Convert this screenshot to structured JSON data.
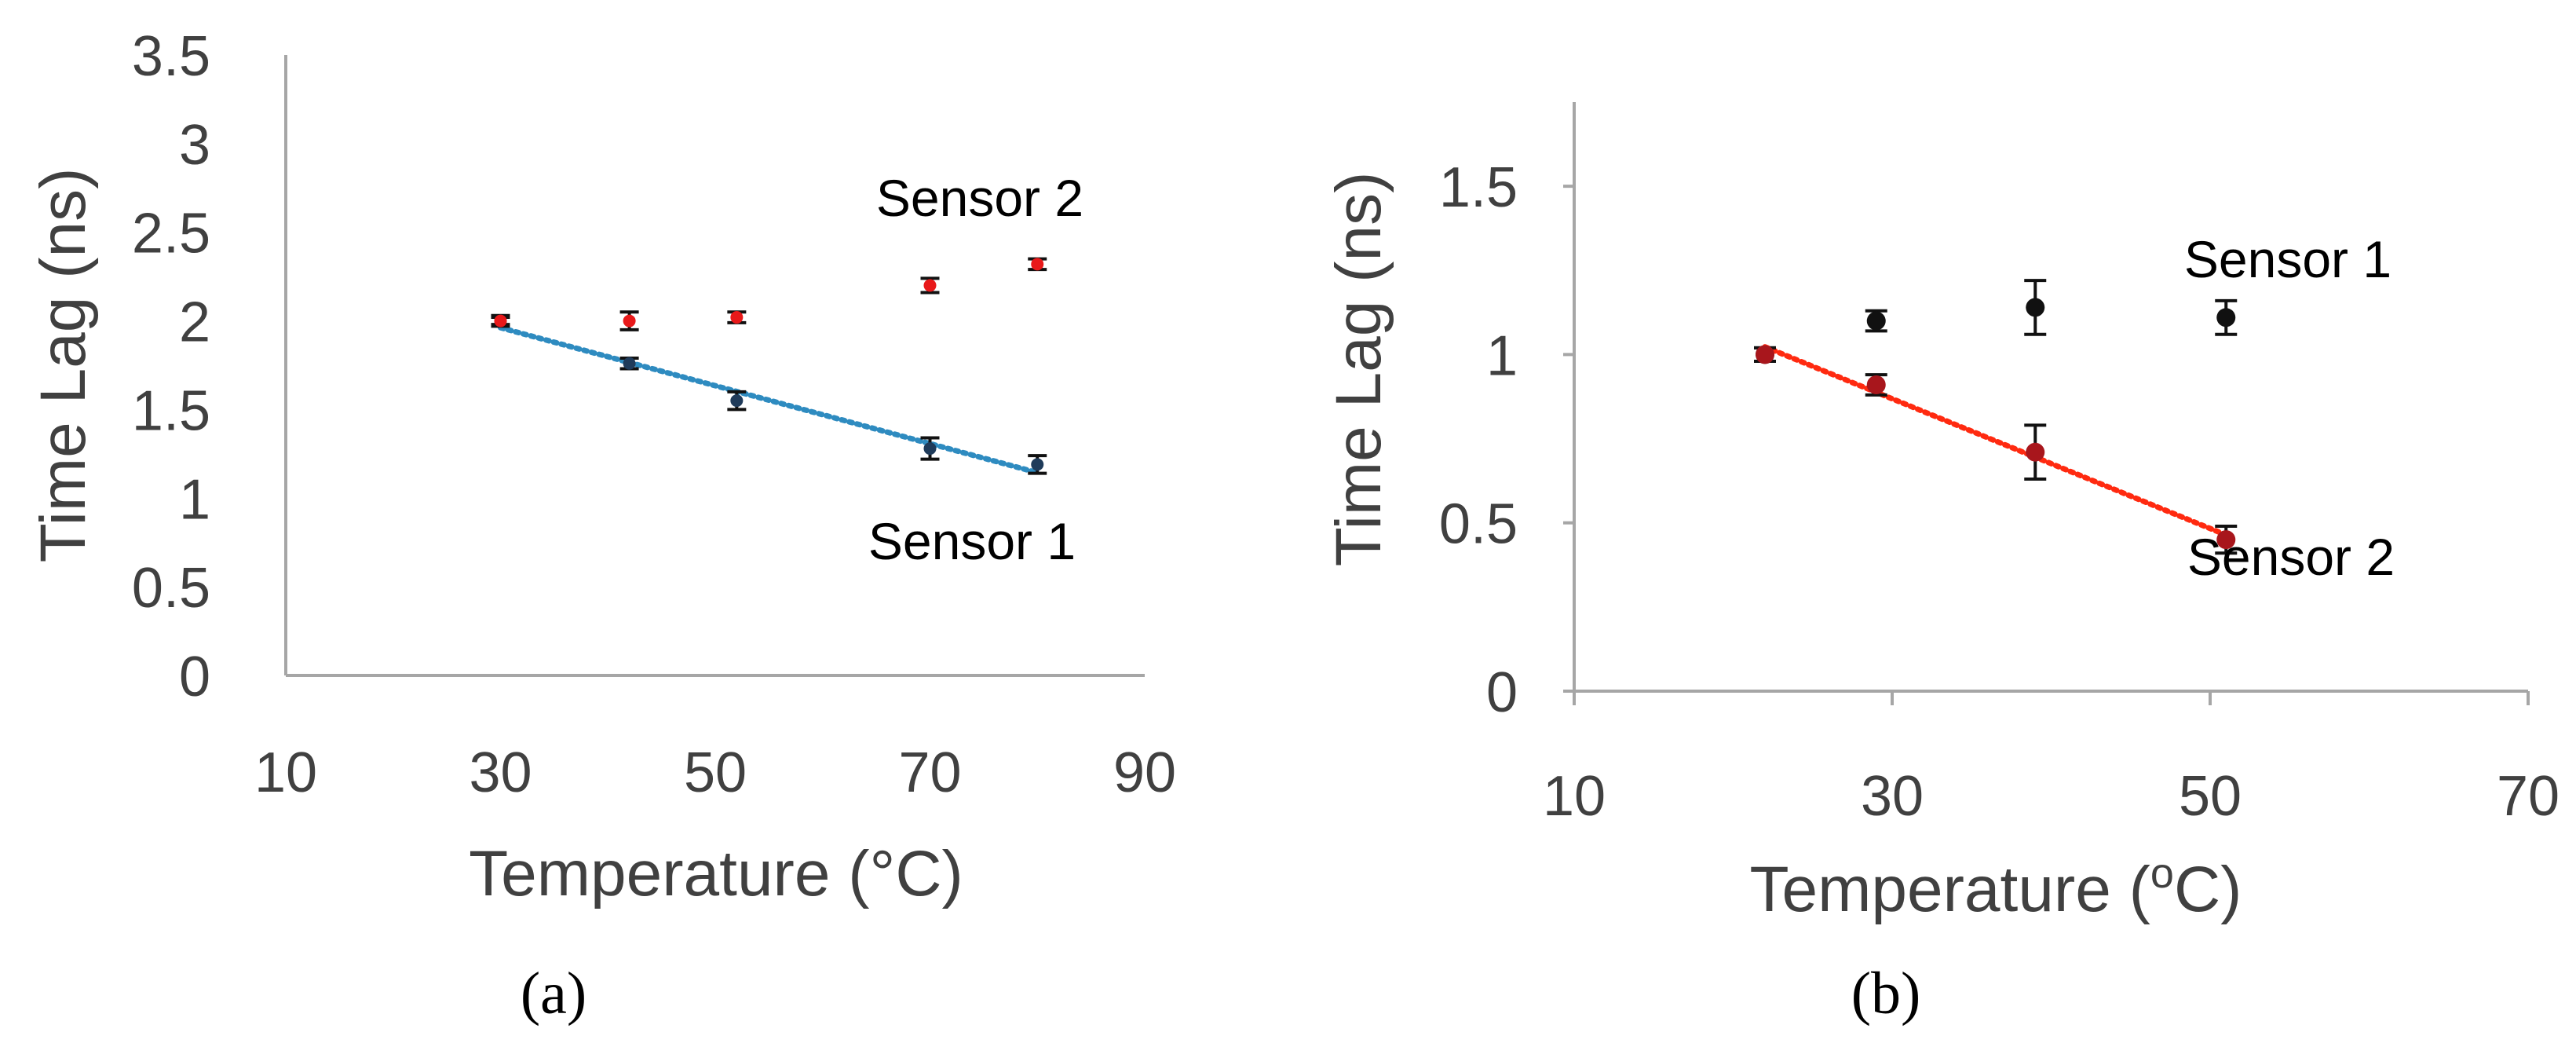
{
  "colors": {
    "axis": "#a6a6a6",
    "tick_text": "#404040",
    "label_text": "#404040",
    "sensor1_a": "#1f3b5a",
    "sensor2_a": "#e8191a",
    "trend_a": "#2e8bc0",
    "sensor1_b": "#111111",
    "sensor2_b": "#a8161c",
    "trend_b": "#ff2a10",
    "errorbar": "#111111"
  },
  "chart_data": [
    {
      "panel_label": "(a)",
      "type": "scatter",
      "xlabel": "Temperature (°C)",
      "ylabel": "Time Lag (ns)",
      "xlim": [
        10,
        90
      ],
      "ylim": [
        0,
        3.5
      ],
      "x_ticks": [
        "10",
        "30",
        "50",
        "70",
        "90"
      ],
      "y_ticks": [
        "0",
        "0.5",
        "1",
        "1.5",
        "2",
        "2.5",
        "3",
        "3.5"
      ],
      "grid": false,
      "series": [
        {
          "name": "Sensor 1",
          "x": [
            30,
            42,
            52,
            70,
            80
          ],
          "y": [
            2.0,
            1.76,
            1.55,
            1.28,
            1.19
          ],
          "err": [
            0.03,
            0.03,
            0.05,
            0.06,
            0.05
          ],
          "trendline": true
        },
        {
          "name": "Sensor 2",
          "x": [
            30,
            42,
            52,
            70,
            80
          ],
          "y": [
            2.0,
            2.0,
            2.02,
            2.2,
            2.32
          ],
          "err": [
            0.02,
            0.05,
            0.03,
            0.04,
            0.03
          ],
          "trendline": false
        }
      ]
    },
    {
      "panel_label": "(b)",
      "type": "scatter",
      "xlabel": "Temperature (",
      "xlabel_superscript": "o",
      "xlabel_suffix": "C)",
      "ylabel": "Time Lag (ns)",
      "xlim": [
        10,
        70
      ],
      "ylim": [
        0,
        1.75
      ],
      "x_ticks": [
        "10",
        "30",
        "50",
        "70"
      ],
      "y_ticks": [
        "0",
        "0.5",
        "1",
        "1.5"
      ],
      "grid": false,
      "series": [
        {
          "name": "Sensor 1",
          "x": [
            22,
            29,
            39,
            51
          ],
          "y": [
            1.0,
            1.1,
            1.14,
            1.11
          ],
          "err": [
            0.02,
            0.03,
            0.08,
            0.05
          ],
          "trendline": false
        },
        {
          "name": "Sensor 2",
          "x": [
            22,
            29,
            39,
            51
          ],
          "y": [
            1.0,
            0.91,
            0.71,
            0.45
          ],
          "err": [
            0.02,
            0.03,
            0.08,
            0.04
          ],
          "trendline": true
        }
      ]
    }
  ]
}
